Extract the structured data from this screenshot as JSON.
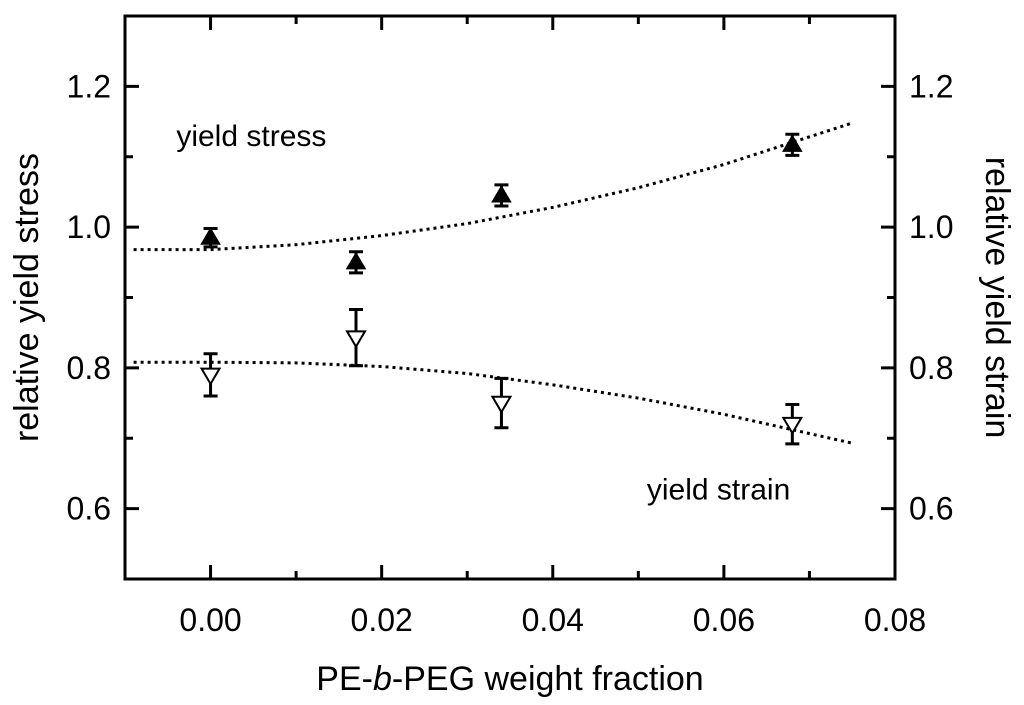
{
  "chart_data": {
    "type": "scatter",
    "xlabel": "PE-b-PEG weight fraction",
    "xlabel_parts": [
      {
        "text": "PE-",
        "italic": false
      },
      {
        "text": "b",
        "italic": true
      },
      {
        "text": "-PEG weight fraction",
        "italic": false
      }
    ],
    "ylabel": "relative yield stress",
    "y2label": "relative yield strain",
    "xlim": [
      -0.01,
      0.08
    ],
    "ylim": [
      0.5,
      1.3
    ],
    "y2lim": [
      0.5,
      1.3
    ],
    "x_ticks": [
      0.0,
      0.02,
      0.04,
      0.06,
      0.08
    ],
    "x_tick_labels": [
      "0.00",
      "0.02",
      "0.04",
      "0.06",
      "0.08"
    ],
    "y_ticks": [
      0.6,
      0.8,
      1.0,
      1.2
    ],
    "y_tick_labels": [
      "0.6",
      "0.8",
      "1.0",
      "1.2"
    ],
    "y2_ticks": [
      0.6,
      0.8,
      1.0,
      1.2
    ],
    "y2_tick_labels": [
      "0.6",
      "0.8",
      "1.0",
      "1.2"
    ],
    "grid": false,
    "series": [
      {
        "marker": "filled-triangle-up",
        "axis": "left",
        "x": [
          0.0,
          0.017,
          0.034,
          0.068
        ],
        "y": [
          0.985,
          0.95,
          1.045,
          1.117
        ],
        "yerr": [
          0.013,
          0.015,
          0.015,
          0.015
        ],
        "fit": {
          "x": [
            -0.009,
            0.0,
            0.01,
            0.02,
            0.03,
            0.04,
            0.05,
            0.06,
            0.075
          ],
          "y": [
            0.968,
            0.968,
            0.975,
            0.988,
            1.005,
            1.028,
            1.056,
            1.089,
            1.148
          ]
        }
      },
      {
        "marker": "open-triangle-down",
        "axis": "right",
        "x": [
          0.0,
          0.017,
          0.034,
          0.068
        ],
        "y": [
          0.79,
          0.843,
          0.75,
          0.72
        ],
        "yerr": [
          0.03,
          0.04,
          0.035,
          0.028
        ],
        "fit": {
          "x": [
            -0.009,
            0.0,
            0.01,
            0.02,
            0.03,
            0.04,
            0.05,
            0.06,
            0.075
          ],
          "y": [
            0.808,
            0.808,
            0.807,
            0.802,
            0.792,
            0.776,
            0.757,
            0.734,
            0.693
          ]
        }
      }
    ],
    "annotations": [
      {
        "text": "yield stress",
        "x": -0.004,
        "y": 1.115
      },
      {
        "text": "yield strain",
        "x": 0.051,
        "y": 0.613
      }
    ]
  }
}
